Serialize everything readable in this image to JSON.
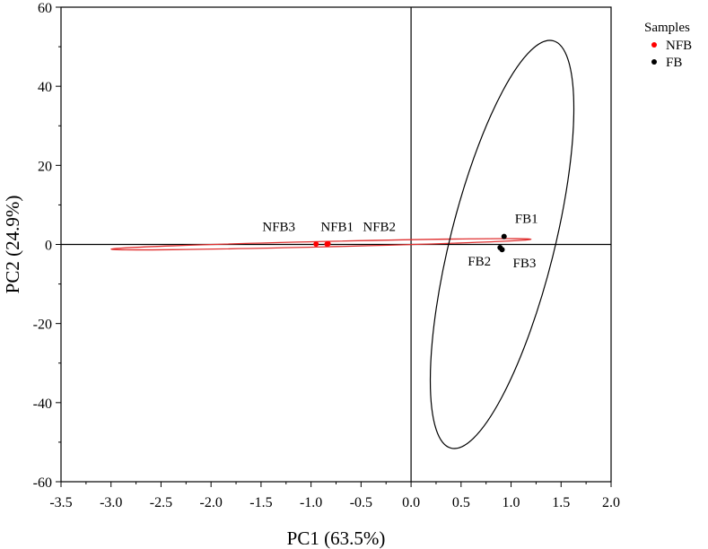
{
  "chart_data": {
    "type": "scatter",
    "title": "",
    "xlabel": "PC1 (63.5%)",
    "ylabel": "PC2 (24.9%)",
    "xlim": [
      -3.5,
      2.0
    ],
    "ylim": [
      -60,
      60
    ],
    "xticks": [
      -3.5,
      -3.0,
      -2.5,
      -2.0,
      -1.5,
      -1.0,
      -0.5,
      0.0,
      0.5,
      1.0,
      1.5,
      2.0
    ],
    "xtick_labels": [
      "-3.5",
      "-3.0",
      "-2.5",
      "-2.0",
      "-1.5",
      "-1.0",
      "-0.5",
      "0.0",
      "0.5",
      "1.0",
      "1.5",
      "2.0"
    ],
    "yticks": [
      -60,
      -40,
      -20,
      0,
      20,
      40,
      60
    ],
    "ytick_labels": [
      "-60",
      "-40",
      "-20",
      "0",
      "20",
      "40",
      "60"
    ],
    "grid": false,
    "reference_lines": {
      "x": 0,
      "y": 0
    },
    "legend": {
      "title": "Samples",
      "position": "right",
      "entries": [
        {
          "label": "NFB",
          "color": "#ff0000"
        },
        {
          "label": "FB",
          "color": "#000000"
        }
      ]
    },
    "series": [
      {
        "name": "NFB",
        "color": "#ff0000",
        "points": [
          {
            "label": "NFB1",
            "x": -0.83,
            "y": 0.2
          },
          {
            "label": "NFB2",
            "x": -0.84,
            "y": 0.1
          },
          {
            "label": "NFB3",
            "x": -0.95,
            "y": 0.1
          }
        ],
        "ellipse": {
          "center_x": -0.9,
          "center_y": 0.1,
          "extent_x": [
            -3.0,
            1.2
          ],
          "extent_y": [
            -1.2,
            1.3
          ],
          "edge_color": "#e03030"
        }
      },
      {
        "name": "FB",
        "color": "#000000",
        "points": [
          {
            "label": "FB1",
            "x": 0.93,
            "y": 2.0
          },
          {
            "label": "FB2",
            "x": 0.89,
            "y": -0.8
          },
          {
            "label": "FB3",
            "x": 0.91,
            "y": -1.3
          }
        ],
        "ellipse": {
          "center_x": 0.91,
          "center_y": 0.0,
          "extent_x": [
            0.25,
            1.58
          ],
          "extent_y": [
            -51.5,
            51.5
          ],
          "edge_color": "#000000"
        }
      }
    ]
  }
}
